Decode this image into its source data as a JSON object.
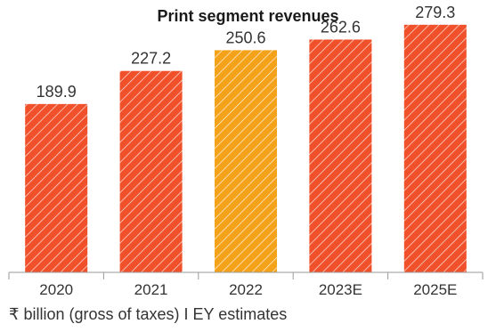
{
  "chart_data": {
    "type": "bar",
    "title": "Print segment revenues",
    "categories": [
      "2020",
      "2021",
      "2022",
      "2023E",
      "2025E"
    ],
    "values": [
      189.9,
      227.2,
      250.6,
      262.6,
      279.3
    ],
    "value_labels": [
      "189.9",
      "227.2",
      "250.6",
      "262.6",
      "279.3"
    ],
    "note": "₹ billion (gross of taxes) I EY estimates",
    "ylim": [
      0,
      290
    ],
    "grid": false,
    "legend": "none",
    "colors": {
      "primary": "#f0502a",
      "highlight": "#f5a21b",
      "hatch": "#ffffff",
      "axis": "#9a9a9a"
    },
    "highlight_index": 2
  }
}
